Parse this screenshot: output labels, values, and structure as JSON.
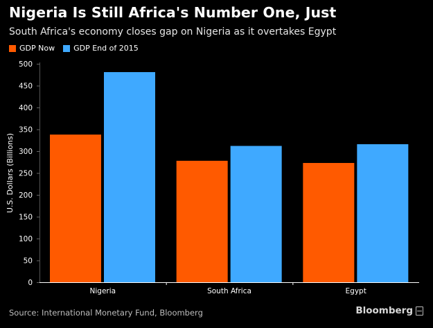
{
  "title": "Nigeria Is Still Africa's Number One, Just",
  "subtitle": "South Africa's economy closes gap on Nigeria as it overtakes Egypt",
  "source": "Source: International Monetary Fund, Bloomberg",
  "logo_text": "Bloomberg",
  "colors": {
    "background": "#000000",
    "gdp_now": "#ff5a00",
    "gdp_2015": "#3fa9ff",
    "grid": "#333333"
  },
  "chart_data": {
    "type": "bar",
    "title": "Nigeria Is Still Africa's Number One, Just",
    "subtitle": "South Africa's economy closes gap on Nigeria as it overtakes Egypt",
    "xlabel": "",
    "ylabel": "U.S. Dollars (Billions)",
    "ylim": [
      0,
      500
    ],
    "yticks": [
      0,
      50,
      100,
      150,
      200,
      250,
      300,
      350,
      400,
      450,
      500
    ],
    "grid": false,
    "legend_position": "top-left",
    "categories": [
      "Nigeria",
      "South Africa",
      "Egypt"
    ],
    "series": [
      {
        "name": "GDP Now",
        "color": "#ff5a00",
        "values": [
          338,
          278,
          273
        ]
      },
      {
        "name": "GDP End of 2015",
        "color": "#3fa9ff",
        "values": [
          481,
          312,
          316
        ]
      }
    ]
  }
}
